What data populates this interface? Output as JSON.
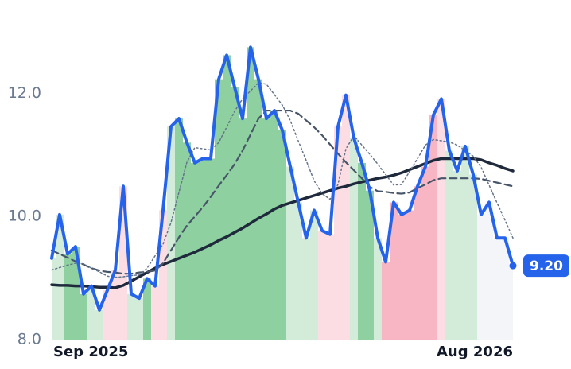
{
  "chart_data": {
    "type": "line",
    "categories": [
      "Sep 2025",
      null,
      null,
      null,
      null,
      null,
      null,
      null,
      null,
      null,
      null,
      null,
      null,
      null,
      null,
      null,
      null,
      null,
      null,
      null,
      null,
      null,
      null,
      null,
      null,
      null,
      null,
      null,
      null,
      null,
      null,
      null,
      null,
      null,
      null,
      null,
      null,
      null,
      null,
      null,
      null,
      null,
      null,
      null,
      null,
      null,
      null,
      null,
      null,
      null,
      null,
      null,
      null,
      null,
      null,
      null,
      null,
      null,
      "Aug 2026"
    ],
    "ylim": [
      8,
      13
    ],
    "yticks": [
      {
        "value": 8,
        "label": "8.0"
      },
      {
        "value": 10,
        "label": "10.0"
      },
      {
        "value": 12,
        "label": "12.0"
      }
    ],
    "series": [
      {
        "color": "#2563eb",
        "width": 4,
        "dash": "none",
        "values": [
          9.32,
          10.03,
          9.39,
          9.51,
          8.74,
          8.87,
          8.48,
          8.8,
          9.13,
          10.49,
          8.74,
          8.67,
          8.99,
          8.87,
          10.1,
          11.46,
          11.59,
          11.2,
          10.87,
          10.94,
          10.94,
          12.23,
          12.62,
          12.1,
          11.59,
          12.75,
          12.23,
          11.59,
          11.72,
          11.4,
          10.81,
          10.23,
          9.65,
          10.1,
          9.77,
          9.71,
          11.46,
          11.97,
          11.27,
          10.87,
          10.42,
          9.65,
          9.26,
          10.23,
          10.03,
          10.1,
          10.49,
          10.81,
          11.65,
          11.91,
          11.07,
          10.74,
          11.14,
          10.68,
          10.03,
          10.23,
          9.65,
          9.65,
          9.2
        ],
        "value_labels": [
          null,
          null,
          null,
          null,
          null,
          null,
          null,
          null,
          null,
          null,
          null,
          null,
          null,
          null,
          null,
          null,
          null,
          null,
          null,
          null,
          null,
          null,
          null,
          null,
          null,
          null,
          null,
          null,
          null,
          null,
          null,
          null,
          null,
          null,
          null,
          null,
          null,
          null,
          null,
          null,
          null,
          null,
          null,
          null,
          null,
          null,
          null,
          null,
          null,
          null,
          null,
          null,
          null,
          null,
          null,
          null,
          null,
          null,
          "9.20"
        ],
        "fills": [
          "#d3ecd9",
          "#d3ecd9",
          "#8fd0a0",
          "#8fd0a0",
          "#8fd0a0",
          "#d3ecd9",
          "#d3ecd9",
          "#fcdde4",
          "#fcdde4",
          "#fcdde4",
          "#d3ecd9",
          "#d3ecd9",
          "#8fd0a0",
          "#fcdde4",
          "#fcdde4",
          "#d3ecd9",
          "#8fd0a0",
          "#8fd0a0",
          "#8fd0a0",
          "#8fd0a0",
          "#8fd0a0",
          "#8fd0a0",
          "#8fd0a0",
          "#8fd0a0",
          "#8fd0a0",
          "#8fd0a0",
          "#8fd0a0",
          "#8fd0a0",
          "#8fd0a0",
          "#8fd0a0",
          "#d3ecd9",
          "#d3ecd9",
          "#d3ecd9",
          "#d3ecd9",
          "#fcdde4",
          "#fcdde4",
          "#fcdde4",
          "#fcdde4",
          "#d3ecd9",
          "#8fd0a0",
          "#8fd0a0",
          "#d3ecd9",
          "#f8b6c4",
          "#f8b6c4",
          "#f8b6c4",
          "#f8b6c4",
          "#f8b6c4",
          "#f8b6c4",
          "#f8b6c4",
          "#fcdde4",
          "#d3ecd9",
          "#d3ecd9",
          "#d3ecd9",
          "#d3ecd9",
          "#f3f5f8",
          "#f3f5f8",
          "#f3f5f8",
          "#f3f5f8",
          "#f3f5f8"
        ]
      },
      {
        "color": "#64748b",
        "width": 1.5,
        "dash": "2,3",
        "values": [
          9.13,
          9.17,
          9.21,
          9.24,
          9.23,
          9.16,
          9.1,
          9.03,
          9.01,
          9.02,
          9.04,
          9.05,
          9.16,
          9.36,
          9.55,
          9.9,
          10.39,
          10.88,
          11.12,
          11.1,
          11.08,
          11.2,
          11.45,
          11.71,
          11.91,
          12.04,
          12.17,
          12.15,
          11.98,
          11.81,
          11.56,
          11.23,
          10.91,
          10.58,
          10.37,
          10.28,
          10.52,
          11.1,
          11.31,
          11.16,
          11.01,
          10.85,
          10.68,
          10.51,
          10.52,
          10.73,
          10.94,
          11.16,
          11.25,
          11.23,
          11.21,
          11.16,
          11.07,
          10.98,
          10.8,
          10.51,
          10.22,
          9.94,
          9.65
        ]
      },
      {
        "color": "#475569",
        "width": 2.2,
        "dash": "9,5",
        "values": [
          9.45,
          9.39,
          9.33,
          9.27,
          9.22,
          9.16,
          9.12,
          9.1,
          9.09,
          9.07,
          9.07,
          9.09,
          9.1,
          9.12,
          9.24,
          9.45,
          9.66,
          9.85,
          10.0,
          10.15,
          10.32,
          10.5,
          10.67,
          10.85,
          11.07,
          11.33,
          11.59,
          11.72,
          11.72,
          11.72,
          11.72,
          11.67,
          11.56,
          11.45,
          11.32,
          11.17,
          11.02,
          10.88,
          10.75,
          10.62,
          10.48,
          10.41,
          10.4,
          10.38,
          10.37,
          10.39,
          10.46,
          10.52,
          10.59,
          10.62,
          10.62,
          10.62,
          10.62,
          10.62,
          10.61,
          10.58,
          10.55,
          10.52,
          10.49
        ]
      },
      {
        "color": "#1e293b",
        "width": 3.5,
        "dash": "none",
        "values": [
          8.89,
          8.88,
          8.88,
          8.87,
          8.87,
          8.86,
          8.85,
          8.85,
          8.84,
          8.88,
          8.95,
          9.02,
          9.09,
          9.16,
          9.22,
          9.27,
          9.32,
          9.37,
          9.42,
          9.48,
          9.54,
          9.61,
          9.67,
          9.74,
          9.81,
          9.89,
          9.97,
          10.04,
          10.12,
          10.18,
          10.22,
          10.26,
          10.3,
          10.34,
          10.38,
          10.42,
          10.46,
          10.49,
          10.53,
          10.56,
          10.59,
          10.62,
          10.64,
          10.67,
          10.71,
          10.76,
          10.81,
          10.86,
          10.91,
          10.94,
          10.94,
          10.94,
          10.94,
          10.94,
          10.92,
          10.87,
          10.83,
          10.78,
          10.74
        ]
      }
    ]
  }
}
